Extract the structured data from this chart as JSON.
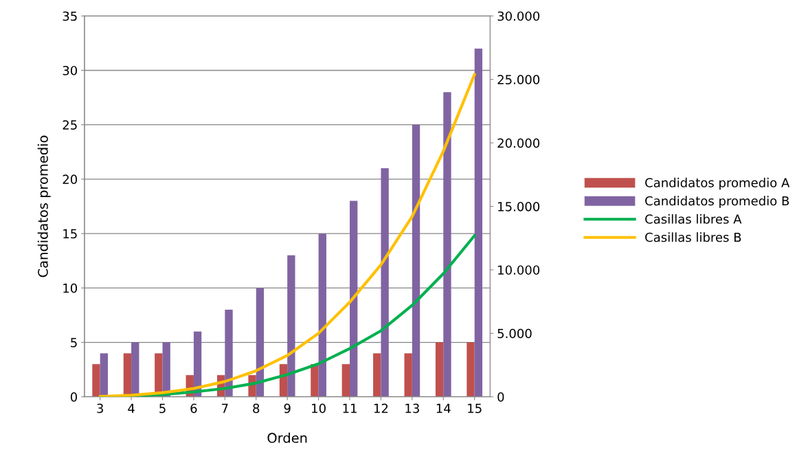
{
  "chart_data": {
    "type": "bar",
    "xlabel": "Orden",
    "ylabel": "Candidatos promedio",
    "categories": [
      "3",
      "4",
      "5",
      "6",
      "7",
      "8",
      "9",
      "10",
      "11",
      "12",
      "13",
      "14",
      "15"
    ],
    "series": [
      {
        "name": "Candidatos promedio A",
        "color": "#c0504d",
        "values": [
          3,
          4,
          4,
          2,
          2,
          2,
          3,
          3,
          3,
          4,
          4,
          5,
          5
        ]
      },
      {
        "name": "Candidatos promedio B",
        "color": "#8064a2",
        "values": [
          4,
          5,
          5,
          6,
          8,
          10,
          13,
          15,
          18,
          21,
          25,
          28,
          32
        ]
      },
      {
        "name": "Casillas libres A",
        "color": "#00b050",
        "type": "line",
        "axis": "y2",
        "values": [
          20,
          60,
          170,
          380,
          650,
          1080,
          1750,
          2600,
          3800,
          5200,
          7200,
          9700,
          12700
        ]
      },
      {
        "name": "Casillas libres B",
        "color": "#ffc000",
        "type": "line",
        "axis": "y2",
        "values": [
          30,
          120,
          320,
          650,
          1200,
          2050,
          3250,
          5000,
          7450,
          10400,
          14200,
          19350,
          25400
        ]
      }
    ],
    "ylim": [
      0,
      35
    ],
    "yticks": [
      0,
      5,
      10,
      15,
      20,
      25,
      30,
      35
    ],
    "y2lim": [
      0,
      30000
    ],
    "y2ticks": [
      {
        "value": 0,
        "label": "0"
      },
      {
        "value": 5000,
        "label": "5.000"
      },
      {
        "value": 10000,
        "label": "10.000"
      },
      {
        "value": 15000,
        "label": "15.000"
      },
      {
        "value": 20000,
        "label": "20.000"
      },
      {
        "value": 25000,
        "label": "25.000"
      },
      {
        "value": 30000,
        "label": "30.000"
      }
    ],
    "grid": "y",
    "legend": "right",
    "marker": "none",
    "line_style": "solid"
  }
}
